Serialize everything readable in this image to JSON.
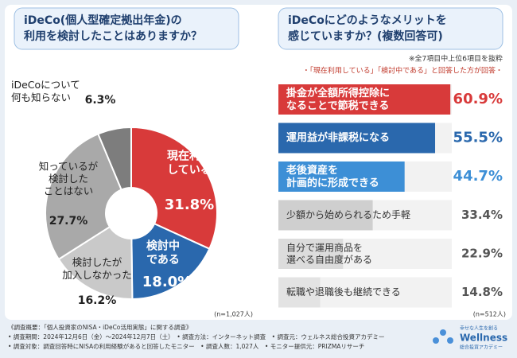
{
  "chart_data": [
    {
      "type": "pie",
      "title": [
        "iDeCo(個人型確定拠出年金)の",
        "利用を検討したことはありますか？"
      ],
      "categories": [
        "現在利用\nしている",
        "検討中\nである",
        "検討したが\n加入しなかった",
        "知っているが\n検討した\nことはない",
        "iDeCoについて\n何も知らない"
      ],
      "values": [
        31.8,
        18.0,
        16.2,
        27.7,
        6.3
      ],
      "value_labels": [
        "31.8%",
        "18.0%",
        "16.2%",
        "27.7%",
        "6.3%"
      ],
      "colors": [
        "#d83a3a",
        "#2a68ad",
        "#c9c9c9",
        "#a9a9a9",
        "#7d7d7d"
      ],
      "note": "(n=1,027人)"
    },
    {
      "type": "hbar",
      "title": [
        "iDeCoにどのようなメリットを",
        "感じていますか？(複数回答可)"
      ],
      "notes": [
        "※全7項目中上位6項目を抜粋",
        "・「現在利用している」「検討中である」と回答した方が回答・"
      ],
      "categories": [
        "掛金が全額所得控除に\nなることで節税できる",
        "運用益が非課税になる",
        "老後資産を\n計画的に形成できる",
        "少額から始められるため手軽",
        "自分で運用商品を\n選べる自由度がある",
        "転職や退職後も継続できる"
      ],
      "values": [
        60.9,
        55.5,
        44.7,
        33.4,
        22.9,
        14.8
      ],
      "value_labels": [
        "60.9%",
        "55.5%",
        "44.7%",
        "33.4%",
        "22.9%",
        "14.8%"
      ],
      "colors": [
        "#d83a3a",
        "#2a68ad",
        "#3d8fd6",
        "#cfcfcf",
        "#dcdcdc",
        "#e3e3e3"
      ],
      "note": "(n=512人)"
    }
  ],
  "footer": [
    "《調査概要：「個人投資家のNISA・iDeCo活用実態」に関する調査》",
    "• 調査期間：2024年12月6日（金）〜2024年12月7日（土）　• 調査方法：インターネット調査　• 調査元：ウェルネス総合投資アカデミー",
    "• 調査対象：調査回答時にNISAの利用経験があると回答したモニター　• 調査人数：1,027人　• モニター提供元：PRIZMAリサーチ"
  ],
  "logo": {
    "tagline": "幸せな人生を創る",
    "name": "Wellness",
    "sub": "総合投資アカデミー"
  }
}
